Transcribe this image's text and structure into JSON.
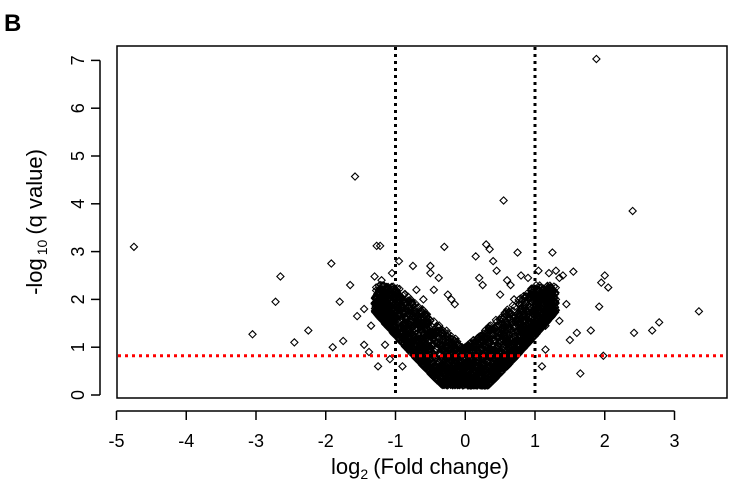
{
  "panel_label": "B",
  "colors": {
    "threshold_line": "#ff0000",
    "fold_lines": "#000000",
    "points": "#000000"
  },
  "chart_data": {
    "type": "scatter",
    "xlabel": {
      "prefix": "log",
      "sub": "2",
      "suffix": "(Fold change)"
    },
    "ylabel": {
      "prefix": "-log",
      "sub": "10",
      "suffix": "(q value)"
    },
    "xlim": [
      -5,
      3.7
    ],
    "ylim": [
      0,
      7.2
    ],
    "x_ticks": [
      -5,
      -4,
      -3,
      -2,
      -1,
      0,
      1,
      2,
      3
    ],
    "y_ticks": [
      0,
      1,
      2,
      3,
      4,
      5,
      6,
      7
    ],
    "x_tick_labels": [
      "-5",
      "-4",
      "-3",
      "-2",
      "-1",
      "0",
      "1",
      "2",
      "3"
    ],
    "y_tick_labels": [
      "0",
      "1",
      "2",
      "3",
      "4",
      "5",
      "6",
      "7"
    ],
    "marker": "open-diamond",
    "reference_lines": [
      {
        "orientation": "vertical",
        "value": -1,
        "style": "dotted",
        "color": "#000000"
      },
      {
        "orientation": "vertical",
        "value": 1,
        "style": "dotted",
        "color": "#000000"
      },
      {
        "orientation": "horizontal",
        "value": 0.82,
        "style": "dotted",
        "color": "#ff0000"
      }
    ],
    "grid": false,
    "points": [
      [
        -4.75,
        3.1
      ],
      [
        -3.05,
        1.27
      ],
      [
        -2.72,
        1.95
      ],
      [
        -2.65,
        2.48
      ],
      [
        -2.45,
        1.1
      ],
      [
        -2.25,
        1.35
      ],
      [
        -1.92,
        2.75
      ],
      [
        -1.9,
        1.0
      ],
      [
        -1.8,
        1.95
      ],
      [
        -1.75,
        1.13
      ],
      [
        -1.65,
        2.3
      ],
      [
        -1.58,
        4.57
      ],
      [
        -1.55,
        1.65
      ],
      [
        -1.45,
        1.05
      ],
      [
        -1.35,
        1.45
      ],
      [
        -1.3,
        2.48
      ],
      [
        -1.27,
        3.12
      ],
      [
        -1.22,
        3.12
      ],
      [
        -1.2,
        2.4
      ],
      [
        -1.25,
        0.6
      ],
      [
        -1.05,
        2.55
      ],
      [
        -1.05,
        1.5
      ],
      [
        -1.08,
        0.75
      ],
      [
        -0.95,
        2.8
      ],
      [
        -0.85,
        1.6
      ],
      [
        -0.75,
        2.7
      ],
      [
        -0.7,
        2.2
      ],
      [
        -0.6,
        2.0
      ],
      [
        -0.5,
        2.55
      ],
      [
        -0.5,
        2.7
      ],
      [
        -0.3,
        3.1
      ],
      [
        -0.38,
        2.45
      ],
      [
        -0.45,
        2.2
      ],
      [
        -0.9,
        0.6
      ],
      [
        -0.8,
        1.2
      ],
      [
        0.3,
        3.15
      ],
      [
        0.35,
        3.05
      ],
      [
        0.4,
        2.8
      ],
      [
        0.45,
        2.6
      ],
      [
        0.55,
        4.07
      ],
      [
        0.5,
        2.1
      ],
      [
        0.65,
        2.3
      ],
      [
        0.7,
        2.0
      ],
      [
        0.75,
        2.98
      ],
      [
        0.8,
        2.5
      ],
      [
        0.9,
        2.45
      ],
      [
        0.95,
        2.2
      ],
      [
        1.05,
        2.05
      ],
      [
        1.1,
        1.75
      ],
      [
        1.1,
        0.6
      ],
      [
        1.2,
        2.55
      ],
      [
        1.25,
        2.98
      ],
      [
        1.3,
        2.6
      ],
      [
        1.35,
        2.45
      ],
      [
        1.4,
        2.5
      ],
      [
        1.45,
        1.9
      ],
      [
        1.55,
        2.58
      ],
      [
        1.6,
        1.3
      ],
      [
        1.65,
        0.45
      ],
      [
        1.8,
        1.35
      ],
      [
        1.88,
        7.03
      ],
      [
        1.92,
        1.85
      ],
      [
        1.95,
        2.35
      ],
      [
        1.98,
        0.82
      ],
      [
        2.0,
        2.5
      ],
      [
        2.05,
        2.25
      ],
      [
        2.4,
        3.85
      ],
      [
        2.42,
        1.3
      ],
      [
        2.68,
        1.35
      ],
      [
        2.78,
        1.52
      ],
      [
        3.35,
        1.75
      ],
      [
        1.3,
        2.0
      ],
      [
        1.35,
        1.55
      ],
      [
        1.5,
        1.15
      ],
      [
        1.15,
        1.45
      ],
      [
        0.2,
        2.45
      ],
      [
        0.15,
        2.9
      ],
      [
        -0.15,
        1.9
      ],
      [
        -0.2,
        2.0
      ],
      [
        0.25,
        2.3
      ],
      [
        -1.45,
        1.8
      ],
      [
        -1.15,
        1.05
      ],
      [
        -1.38,
        0.9
      ],
      [
        1.05,
        2.6
      ],
      [
        1.15,
        0.95
      ],
      [
        -0.25,
        2.1
      ],
      [
        0.6,
        2.4
      ]
    ],
    "dense_cloud": {
      "count": 2600,
      "x_range": [
        -1.3,
        1.3
      ],
      "y_min": 0.2,
      "y_max": 2.3
    }
  }
}
